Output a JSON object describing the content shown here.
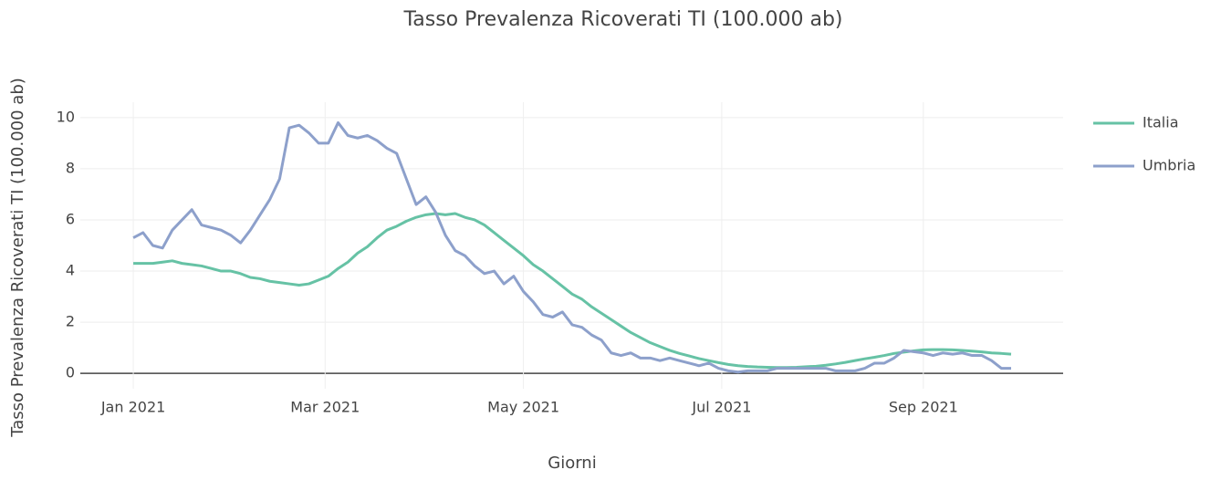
{
  "chart_data": {
    "type": "line",
    "title": "Tasso Prevalenza Ricoverati TI (100.000 ab)",
    "xlabel": "Giorni",
    "ylabel": "Tasso Prevalenza Ricoverati TI (100.000 ab)",
    "x": [
      0,
      3,
      6,
      9,
      12,
      15,
      18,
      21,
      24,
      27,
      30,
      33,
      36,
      39,
      42,
      45,
      48,
      51,
      54,
      57,
      60,
      63,
      66,
      69,
      72,
      75,
      78,
      81,
      84,
      87,
      90,
      93,
      96,
      99,
      102,
      105,
      108,
      111,
      114,
      117,
      120,
      123,
      126,
      129,
      132,
      135,
      138,
      141,
      144,
      147,
      150,
      153,
      156,
      159,
      162,
      165,
      168,
      171,
      174,
      177,
      180,
      183,
      186,
      189,
      192,
      195,
      198,
      201,
      204,
      207,
      210,
      213,
      216,
      219,
      222,
      225,
      228,
      231,
      234,
      237,
      240,
      243,
      246,
      249,
      252,
      255,
      258,
      261,
      264,
      267,
      270
    ],
    "series": [
      {
        "name": "Italia",
        "color": "#66c2a5",
        "values": [
          4.3,
          4.3,
          4.3,
          4.35,
          4.4,
          4.3,
          4.25,
          4.2,
          4.1,
          4.0,
          4.0,
          3.9,
          3.75,
          3.7,
          3.6,
          3.55,
          3.5,
          3.45,
          3.5,
          3.65,
          3.8,
          4.1,
          4.35,
          4.7,
          4.95,
          5.3,
          5.6,
          5.75,
          5.95,
          6.1,
          6.2,
          6.25,
          6.2,
          6.25,
          6.1,
          6.0,
          5.8,
          5.5,
          5.2,
          4.9,
          4.6,
          4.25,
          4.0,
          3.7,
          3.4,
          3.1,
          2.9,
          2.6,
          2.35,
          2.1,
          1.85,
          1.6,
          1.4,
          1.2,
          1.05,
          0.9,
          0.78,
          0.68,
          0.58,
          0.5,
          0.42,
          0.35,
          0.3,
          0.27,
          0.25,
          0.24,
          0.23,
          0.23,
          0.24,
          0.26,
          0.28,
          0.32,
          0.37,
          0.43,
          0.5,
          0.57,
          0.63,
          0.7,
          0.78,
          0.83,
          0.88,
          0.92,
          0.93,
          0.93,
          0.92,
          0.9,
          0.87,
          0.84,
          0.8,
          0.78,
          0.75
        ]
      },
      {
        "name": "Umbria",
        "color": "#8da0cb",
        "values": [
          5.3,
          5.5,
          5.0,
          4.9,
          5.6,
          6.0,
          6.4,
          5.8,
          5.7,
          5.6,
          5.4,
          5.1,
          5.6,
          6.2,
          6.8,
          7.6,
          9.6,
          9.7,
          9.4,
          9.0,
          9.0,
          9.8,
          9.3,
          9.2,
          9.3,
          9.1,
          8.8,
          8.6,
          7.6,
          6.6,
          6.9,
          6.3,
          5.4,
          4.8,
          4.6,
          4.2,
          3.9,
          4.0,
          3.5,
          3.8,
          3.2,
          2.8,
          2.3,
          2.2,
          2.4,
          1.9,
          1.8,
          1.5,
          1.3,
          0.8,
          0.7,
          0.8,
          0.6,
          0.6,
          0.5,
          0.6,
          0.5,
          0.4,
          0.3,
          0.4,
          0.2,
          0.1,
          0.05,
          0.1,
          0.1,
          0.1,
          0.2,
          0.2,
          0.2,
          0.2,
          0.2,
          0.2,
          0.1,
          0.1,
          0.1,
          0.2,
          0.4,
          0.4,
          0.6,
          0.9,
          0.85,
          0.8,
          0.7,
          0.8,
          0.75,
          0.8,
          0.7,
          0.7,
          0.5,
          0.2,
          0.2
        ]
      }
    ],
    "xlim": [
      -16.3,
      286
    ],
    "xticks": [
      {
        "value": 0,
        "label": "Jan 2021"
      },
      {
        "value": 59,
        "label": "Mar 2021"
      },
      {
        "value": 120,
        "label": "May 2021"
      },
      {
        "value": 181,
        "label": "Jul 2021"
      },
      {
        "value": 243,
        "label": "Sep 2021"
      }
    ],
    "ylim": [
      -0.6,
      10.6
    ],
    "yticks": [
      0,
      2,
      4,
      6,
      8,
      10
    ],
    "grid": true,
    "legend": "right"
  }
}
